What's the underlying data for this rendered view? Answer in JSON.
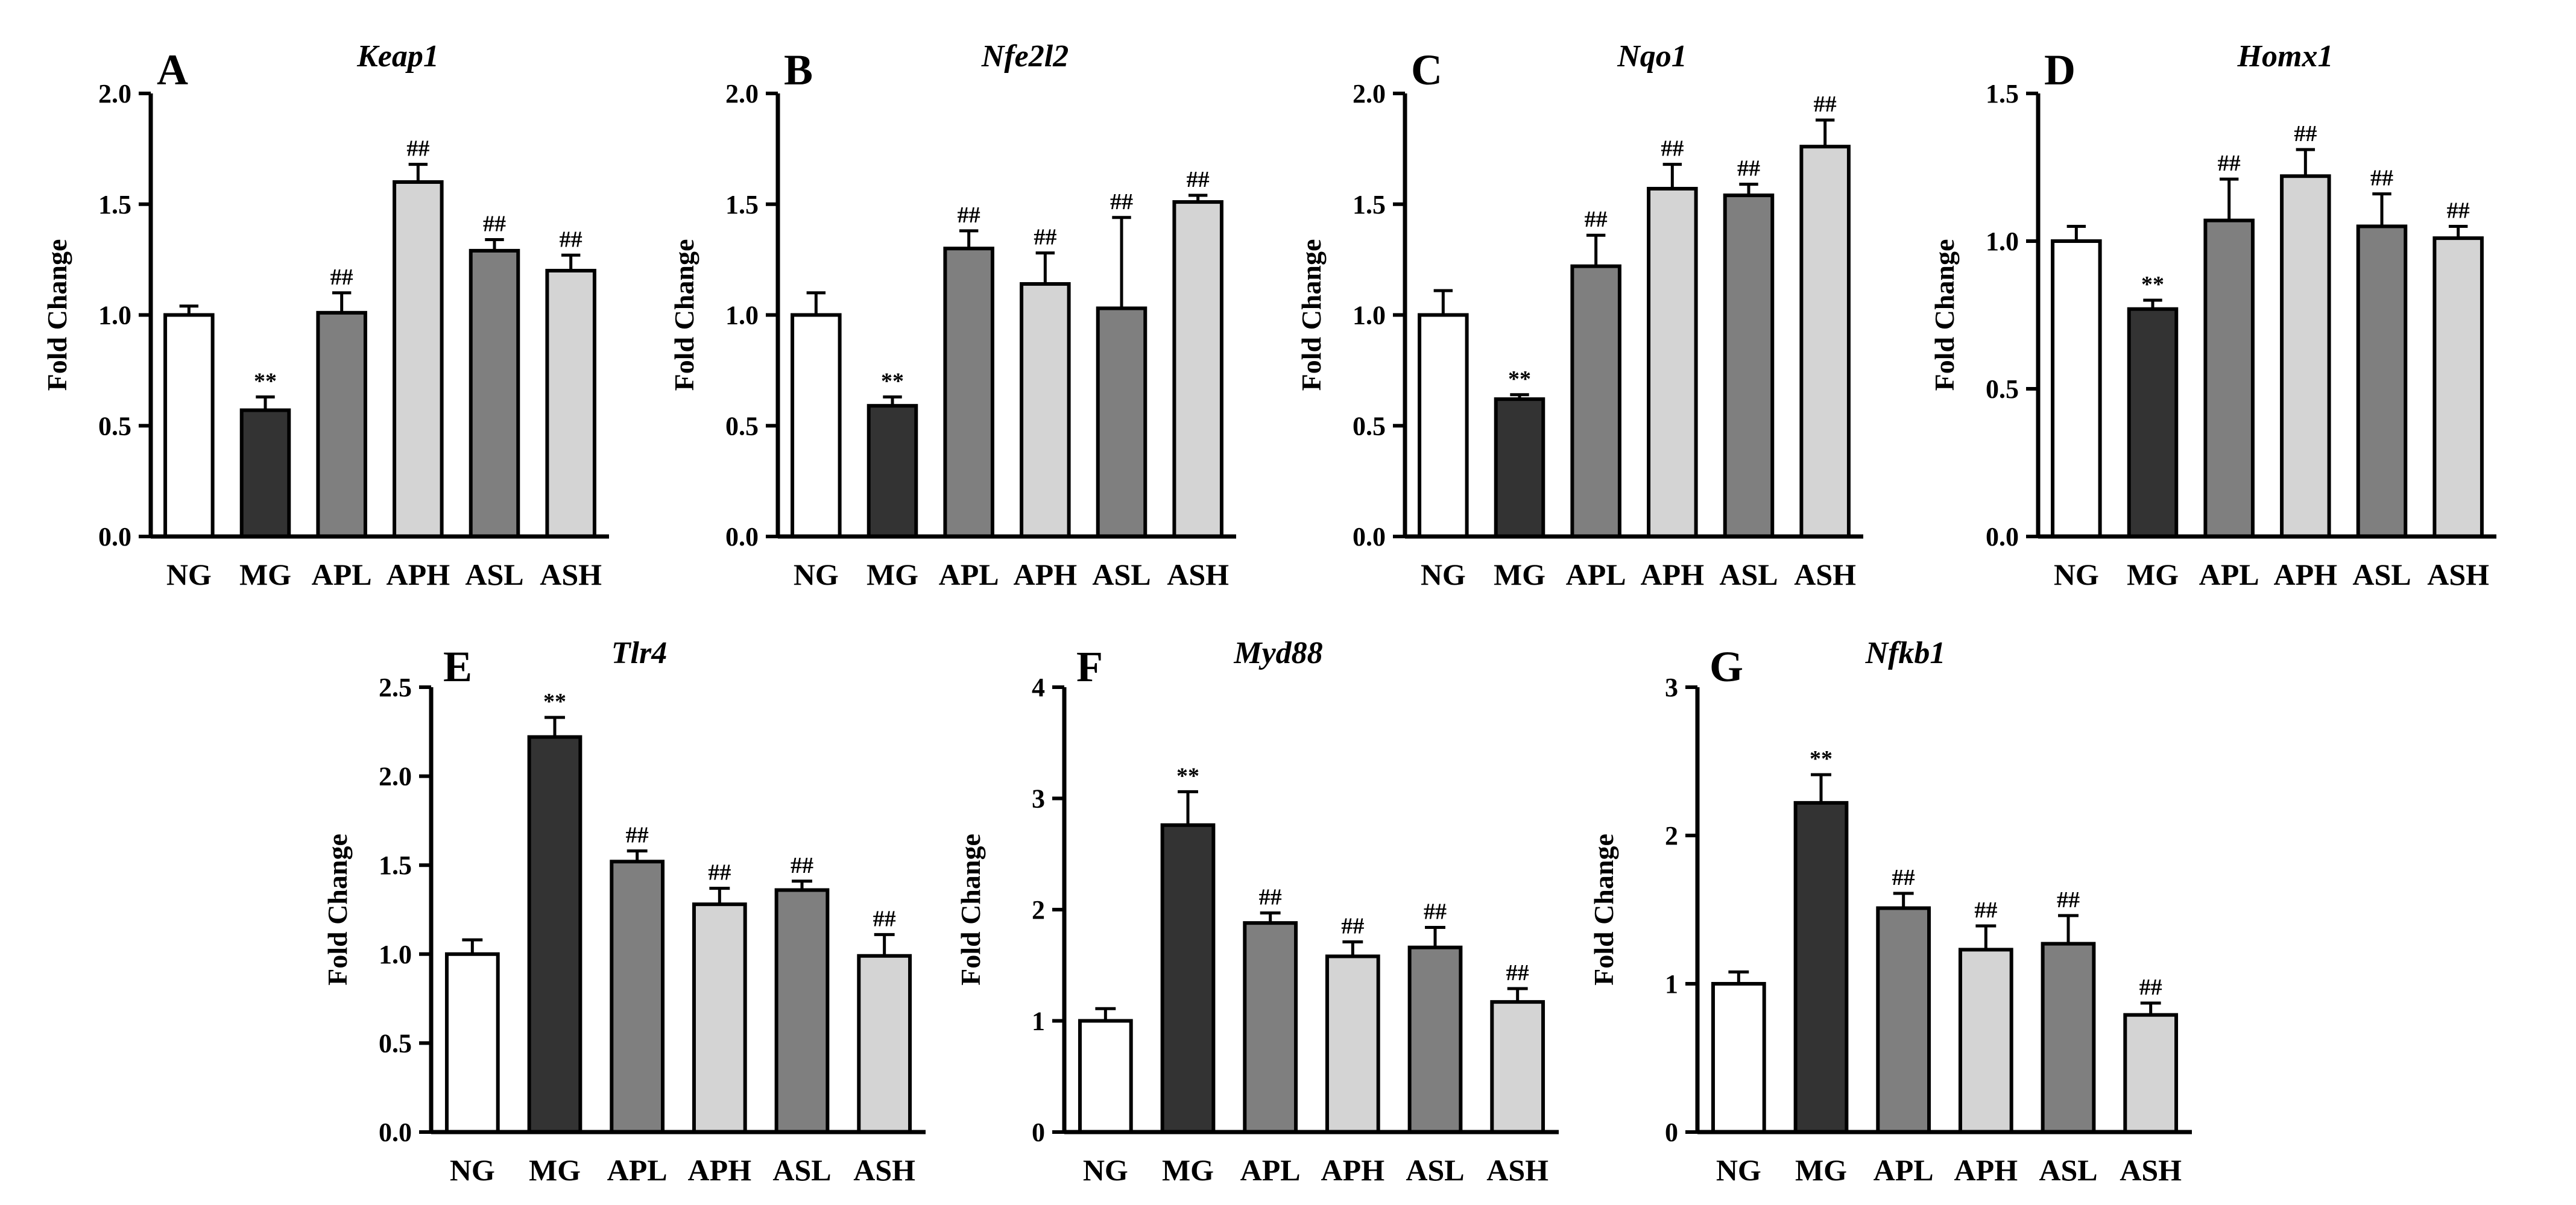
{
  "chart_data": [
    {
      "type": "bar",
      "panel": "A",
      "title": "Keap1",
      "ylabel": "Fold Change",
      "xlabel": "",
      "categories": [
        "NG",
        "MG",
        "APL",
        "APH",
        "ASL",
        "ASH"
      ],
      "values": [
        1.0,
        0.57,
        1.01,
        1.6,
        1.29,
        1.2
      ],
      "errors": [
        0.04,
        0.06,
        0.09,
        0.08,
        0.05,
        0.07
      ],
      "annotations": [
        "",
        "**",
        "##",
        "##",
        "##",
        "##"
      ],
      "ylim": [
        0,
        2.0
      ],
      "yticks": [
        0,
        0.5,
        1.0,
        1.5,
        2.0
      ],
      "ytick_labels": [
        "0.0",
        "0.5",
        "1.0",
        "1.5",
        "2.0"
      ],
      "colors": [
        "#ffffff",
        "#333333",
        "#7f7f7f",
        "#d4d4d4",
        "#7f7f7f",
        "#d4d4d4"
      ]
    },
    {
      "type": "bar",
      "panel": "B",
      "title": "Nfe2l2",
      "ylabel": "Fold Change",
      "xlabel": "",
      "categories": [
        "NG",
        "MG",
        "APL",
        "APH",
        "ASL",
        "ASH"
      ],
      "values": [
        1.0,
        0.59,
        1.3,
        1.14,
        1.03,
        1.51
      ],
      "errors": [
        0.1,
        0.04,
        0.08,
        0.14,
        0.41,
        0.03
      ],
      "annotations": [
        "",
        "**",
        "##",
        "##",
        "##",
        "##"
      ],
      "ylim": [
        0,
        2.0
      ],
      "yticks": [
        0,
        0.5,
        1.0,
        1.5,
        2.0
      ],
      "ytick_labels": [
        "0.0",
        "0.5",
        "1.0",
        "1.5",
        "2.0"
      ],
      "colors": [
        "#ffffff",
        "#333333",
        "#7f7f7f",
        "#d4d4d4",
        "#7f7f7f",
        "#d4d4d4"
      ]
    },
    {
      "type": "bar",
      "panel": "C",
      "title": "Nqo1",
      "ylabel": "Fold Change",
      "xlabel": "",
      "categories": [
        "NG",
        "MG",
        "APL",
        "APH",
        "ASL",
        "ASH"
      ],
      "values": [
        1.0,
        0.62,
        1.22,
        1.57,
        1.54,
        1.76
      ],
      "errors": [
        0.11,
        0.02,
        0.14,
        0.11,
        0.05,
        0.12
      ],
      "annotations": [
        "",
        "**",
        "##",
        "##",
        "##",
        "##"
      ],
      "ylim": [
        0,
        2.0
      ],
      "yticks": [
        0,
        0.5,
        1.0,
        1.5,
        2.0
      ],
      "ytick_labels": [
        "0.0",
        "0.5",
        "1.0",
        "1.5",
        "2.0"
      ],
      "colors": [
        "#ffffff",
        "#333333",
        "#7f7f7f",
        "#d4d4d4",
        "#7f7f7f",
        "#d4d4d4"
      ]
    },
    {
      "type": "bar",
      "panel": "D",
      "title": "Homx1",
      "ylabel": "Fold Change",
      "xlabel": "",
      "categories": [
        "NG",
        "MG",
        "APL",
        "APH",
        "ASL",
        "ASH"
      ],
      "values": [
        1.0,
        0.77,
        1.07,
        1.22,
        1.05,
        1.01
      ],
      "errors": [
        0.05,
        0.03,
        0.14,
        0.09,
        0.11,
        0.04
      ],
      "annotations": [
        "",
        "**",
        "##",
        "##",
        "##",
        "##"
      ],
      "ylim": [
        0,
        1.5
      ],
      "yticks": [
        0,
        0.5,
        1.0,
        1.5
      ],
      "ytick_labels": [
        "0.0",
        "0.5",
        "1.0",
        "1.5"
      ],
      "colors": [
        "#ffffff",
        "#333333",
        "#7f7f7f",
        "#d4d4d4",
        "#7f7f7f",
        "#d4d4d4"
      ]
    },
    {
      "type": "bar",
      "panel": "E",
      "title": "Tlr4",
      "ylabel": "Fold Change",
      "xlabel": "",
      "categories": [
        "NG",
        "MG",
        "APL",
        "APH",
        "ASL",
        "ASH"
      ],
      "values": [
        1.0,
        2.22,
        1.52,
        1.28,
        1.36,
        0.99
      ],
      "errors": [
        0.08,
        0.11,
        0.06,
        0.09,
        0.05,
        0.12
      ],
      "annotations": [
        "",
        "**",
        "##",
        "##",
        "##",
        "##"
      ],
      "ylim": [
        0,
        2.5
      ],
      "yticks": [
        0,
        0.5,
        1.0,
        1.5,
        2.0,
        2.5
      ],
      "ytick_labels": [
        "0.0",
        "0.5",
        "1.0",
        "1.5",
        "2.0",
        "2.5"
      ],
      "colors": [
        "#ffffff",
        "#333333",
        "#7f7f7f",
        "#d4d4d4",
        "#7f7f7f",
        "#d4d4d4"
      ]
    },
    {
      "type": "bar",
      "panel": "F",
      "title": "Myd88",
      "ylabel": "Fold Change",
      "xlabel": "",
      "categories": [
        "NG",
        "MG",
        "APL",
        "APH",
        "ASL",
        "ASH"
      ],
      "values": [
        1.0,
        2.76,
        1.88,
        1.58,
        1.66,
        1.17
      ],
      "errors": [
        0.11,
        0.3,
        0.09,
        0.13,
        0.18,
        0.12
      ],
      "annotations": [
        "",
        "**",
        "##",
        "##",
        "##",
        "##"
      ],
      "ylim": [
        0,
        4
      ],
      "yticks": [
        0,
        1,
        2,
        3,
        4
      ],
      "ytick_labels": [
        "0",
        "1",
        "2",
        "3",
        "4"
      ],
      "colors": [
        "#ffffff",
        "#333333",
        "#7f7f7f",
        "#d4d4d4",
        "#7f7f7f",
        "#d4d4d4"
      ]
    },
    {
      "type": "bar",
      "panel": "G",
      "title": "Nfkb1",
      "ylabel": "Fold Change",
      "xlabel": "",
      "categories": [
        "NG",
        "MG",
        "APL",
        "APH",
        "ASL",
        "ASH"
      ],
      "values": [
        1.0,
        2.22,
        1.51,
        1.23,
        1.27,
        0.79
      ],
      "errors": [
        0.08,
        0.19,
        0.1,
        0.16,
        0.19,
        0.08
      ],
      "annotations": [
        "",
        "**",
        "##",
        "##",
        "##",
        "##"
      ],
      "ylim": [
        0,
        3
      ],
      "yticks": [
        0,
        1,
        2,
        3
      ],
      "ytick_labels": [
        "0",
        "1",
        "2",
        "3"
      ],
      "colors": [
        "#ffffff",
        "#333333",
        "#7f7f7f",
        "#d4d4d4",
        "#7f7f7f",
        "#d4d4d4"
      ]
    }
  ]
}
